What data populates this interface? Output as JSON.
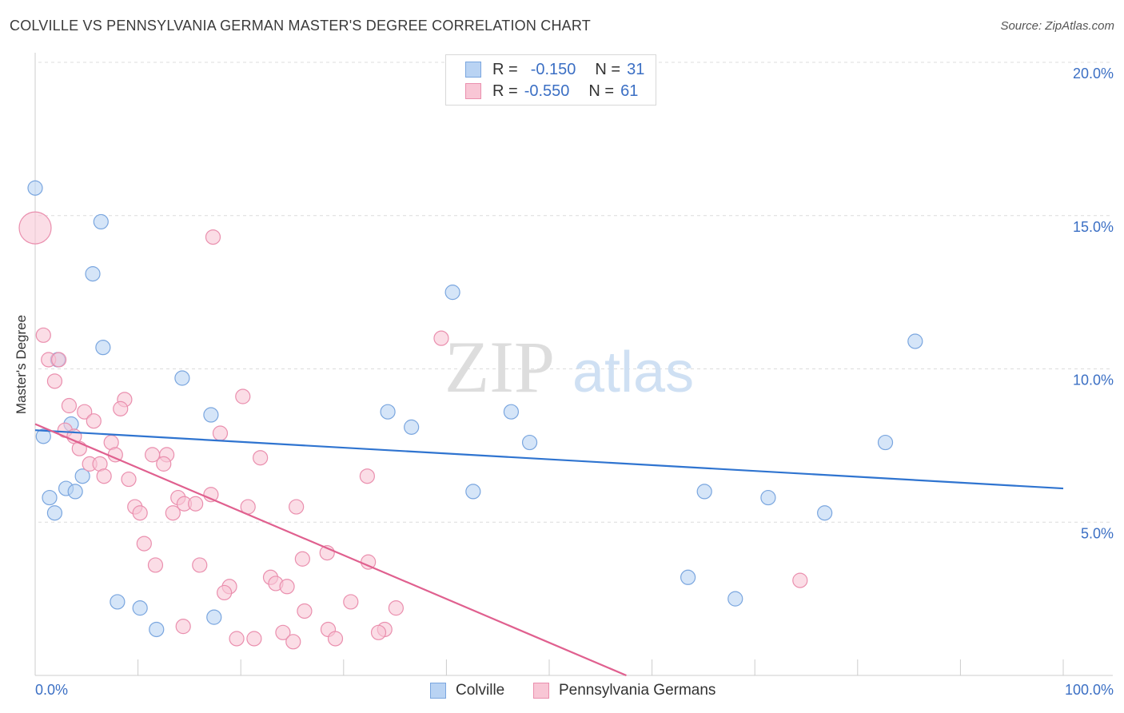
{
  "title": "COLVILLE VS PENNSYLVANIA GERMAN MASTER'S DEGREE CORRELATION CHART",
  "source": "Source: ZipAtlas.com",
  "watermark": {
    "zip": "ZIP",
    "atlas": "atlas"
  },
  "legend": {
    "r_label": "R =",
    "n_label": "N =",
    "series": [
      {
        "name": "Colville",
        "r": "-0.150",
        "n": "31"
      },
      {
        "name": "Pennsylvania Germans",
        "r": "-0.550",
        "n": "61"
      }
    ]
  },
  "colors": {
    "blue_fill": "#b9d3f3",
    "blue_stroke": "#7aa6df",
    "blue_line": "#2f74d0",
    "pink_fill": "#f8c6d5",
    "pink_stroke": "#ea8fae",
    "pink_line": "#e0608f",
    "tick_label": "#3b6fc4",
    "grid": "#dcdcdc"
  },
  "chart_data": {
    "type": "scatter",
    "title": "COLVILLE VS PENNSYLVANIA GERMAN MASTER'S DEGREE CORRELATION CHART",
    "xlabel": "",
    "ylabel": "Master's Degree",
    "xlim": [
      0,
      100
    ],
    "ylim": [
      0,
      20
    ],
    "x_tick_labels": [
      "0.0%",
      "100.0%"
    ],
    "y_ticks": [
      5,
      10,
      15,
      20
    ],
    "y_tick_labels": [
      "5.0%",
      "10.0%",
      "15.0%",
      "20.0%"
    ],
    "grid": true,
    "legend_position": "top-center",
    "series": [
      {
        "name": "Colville",
        "points": [
          [
            0.0,
            15.9
          ],
          [
            6.4,
            14.8
          ],
          [
            5.6,
            13.1
          ],
          [
            40.6,
            12.5
          ],
          [
            6.6,
            10.7
          ],
          [
            2.2,
            10.3
          ],
          [
            14.3,
            9.7
          ],
          [
            85.6,
            10.9
          ],
          [
            17.1,
            8.5
          ],
          [
            34.3,
            8.6
          ],
          [
            46.3,
            8.6
          ],
          [
            3.5,
            8.2
          ],
          [
            36.6,
            8.1
          ],
          [
            0.8,
            7.8
          ],
          [
            48.1,
            7.6
          ],
          [
            82.7,
            7.6
          ],
          [
            4.6,
            6.5
          ],
          [
            3.0,
            6.1
          ],
          [
            3.9,
            6.0
          ],
          [
            42.6,
            6.0
          ],
          [
            65.1,
            6.0
          ],
          [
            1.4,
            5.8
          ],
          [
            71.3,
            5.8
          ],
          [
            1.9,
            5.3
          ],
          [
            76.8,
            5.3
          ],
          [
            63.5,
            3.2
          ],
          [
            68.1,
            2.5
          ],
          [
            8.0,
            2.4
          ],
          [
            10.2,
            2.2
          ],
          [
            11.8,
            1.5
          ],
          [
            17.4,
            1.9
          ]
        ],
        "trend": {
          "x": [
            0,
            100
          ],
          "y": [
            8.0,
            6.1
          ]
        }
      },
      {
        "name": "Pennsylvania Germans",
        "points": [
          [
            0.0,
            14.6
          ],
          [
            17.3,
            14.3
          ],
          [
            0.8,
            11.1
          ],
          [
            39.5,
            11.0
          ],
          [
            1.3,
            10.3
          ],
          [
            2.3,
            10.3
          ],
          [
            1.9,
            9.6
          ],
          [
            20.2,
            9.1
          ],
          [
            8.7,
            9.0
          ],
          [
            3.3,
            8.8
          ],
          [
            8.3,
            8.7
          ],
          [
            4.8,
            8.6
          ],
          [
            5.7,
            8.3
          ],
          [
            2.9,
            8.0
          ],
          [
            3.8,
            7.8
          ],
          [
            18.0,
            7.9
          ],
          [
            7.4,
            7.6
          ],
          [
            4.3,
            7.4
          ],
          [
            7.8,
            7.2
          ],
          [
            11.4,
            7.2
          ],
          [
            12.8,
            7.2
          ],
          [
            5.3,
            6.9
          ],
          [
            6.3,
            6.9
          ],
          [
            12.5,
            6.9
          ],
          [
            21.9,
            7.1
          ],
          [
            6.7,
            6.5
          ],
          [
            32.3,
            6.5
          ],
          [
            9.1,
            6.4
          ],
          [
            17.1,
            5.9
          ],
          [
            13.9,
            5.8
          ],
          [
            14.5,
            5.6
          ],
          [
            15.6,
            5.6
          ],
          [
            9.7,
            5.5
          ],
          [
            20.7,
            5.5
          ],
          [
            25.4,
            5.5
          ],
          [
            10.2,
            5.3
          ],
          [
            13.4,
            5.3
          ],
          [
            10.6,
            4.3
          ],
          [
            28.4,
            4.0
          ],
          [
            26.0,
            3.8
          ],
          [
            32.4,
            3.7
          ],
          [
            11.7,
            3.6
          ],
          [
            16.0,
            3.6
          ],
          [
            22.9,
            3.2
          ],
          [
            18.9,
            2.9
          ],
          [
            23.4,
            3.0
          ],
          [
            24.5,
            2.9
          ],
          [
            74.4,
            3.1
          ],
          [
            18.4,
            2.7
          ],
          [
            30.7,
            2.4
          ],
          [
            26.2,
            2.1
          ],
          [
            35.1,
            2.2
          ],
          [
            14.4,
            1.6
          ],
          [
            28.5,
            1.5
          ],
          [
            34.0,
            1.5
          ],
          [
            24.1,
            1.4
          ],
          [
            33.4,
            1.4
          ],
          [
            19.6,
            1.2
          ],
          [
            21.3,
            1.2
          ],
          [
            29.2,
            1.2
          ],
          [
            25.1,
            1.1
          ]
        ],
        "trend": {
          "x": [
            0,
            57.5
          ],
          "y": [
            8.2,
            0
          ]
        }
      }
    ]
  }
}
